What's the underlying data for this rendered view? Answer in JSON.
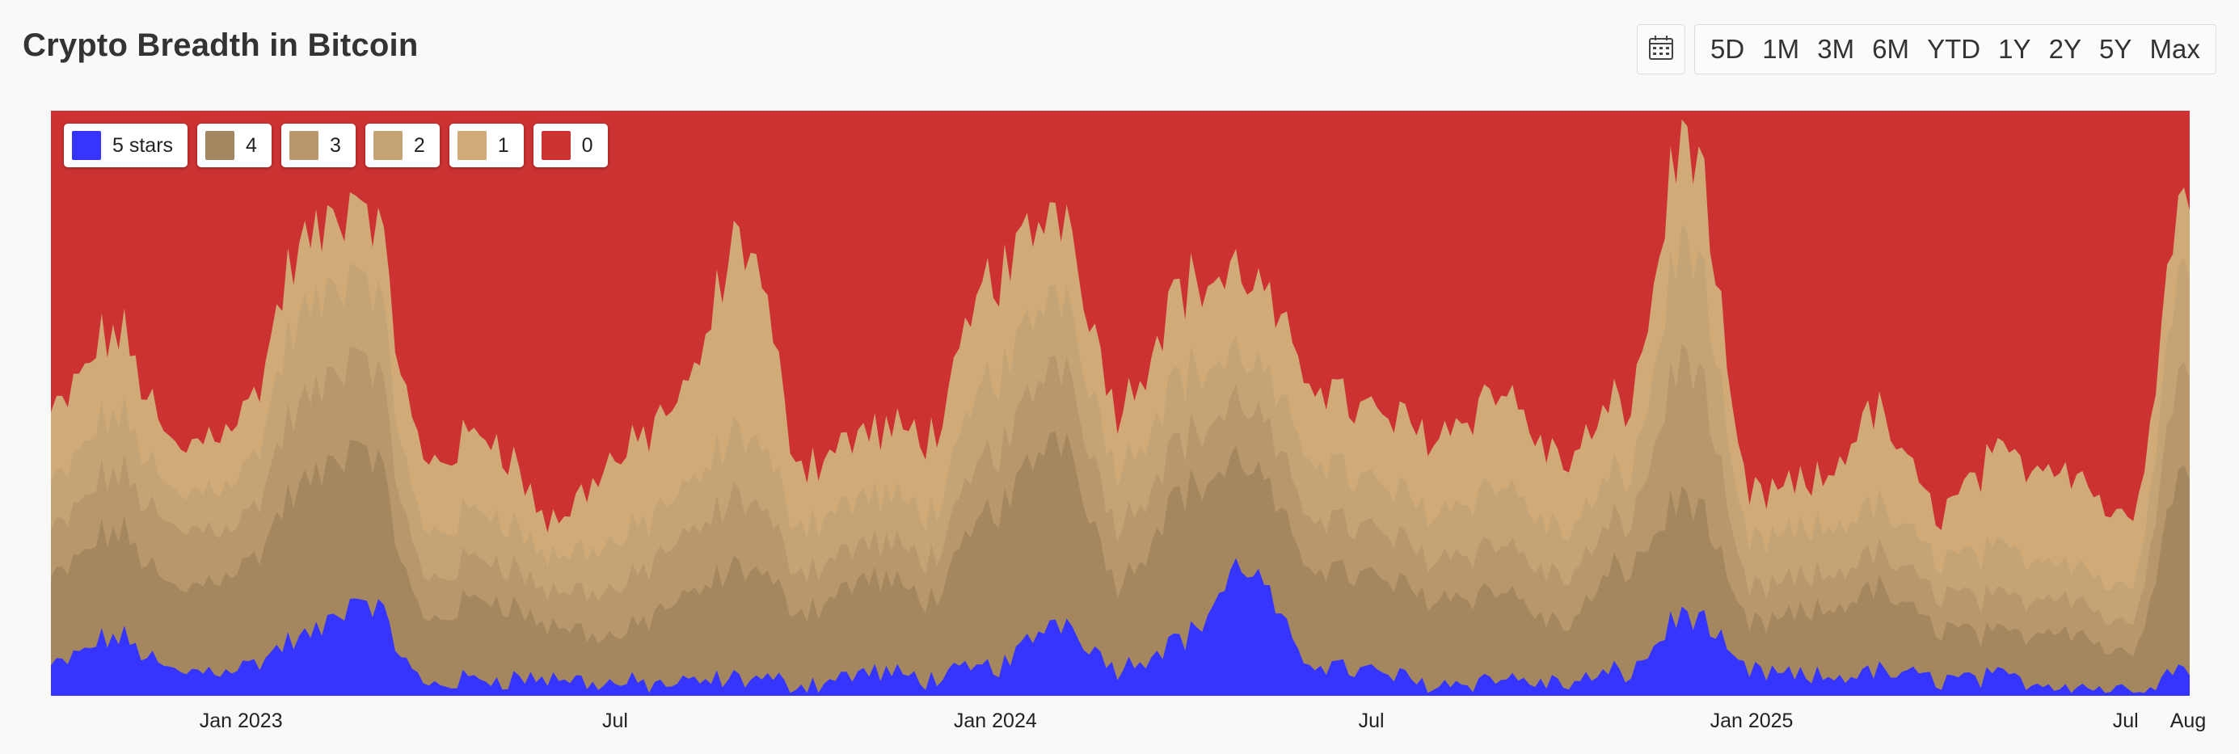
{
  "title": "Crypto Breadth in Bitcoin",
  "toolbar": {
    "calendar_icon": "calendar-icon",
    "ranges": [
      "5D",
      "1M",
      "3M",
      "6M",
      "YTD",
      "1Y",
      "2Y",
      "5Y",
      "Max"
    ]
  },
  "chart_data": {
    "type": "area",
    "stacked": true,
    "normalized": true,
    "x_range": [
      "2022-10-01",
      "2025-08-01"
    ],
    "y_range": [
      0,
      1
    ],
    "x_tick_labels": [
      {
        "label": "Jan 2023",
        "date": "2023-01-01"
      },
      {
        "label": "Jul",
        "date": "2023-07-01"
      },
      {
        "label": "Jan 2024",
        "date": "2024-01-01"
      },
      {
        "label": "Jul",
        "date": "2024-07-01"
      },
      {
        "label": "Jan 2025",
        "date": "2025-01-01"
      },
      {
        "label": "Jul",
        "date": "2025-07-01"
      },
      {
        "label": "Aug",
        "date": "2025-08-01"
      }
    ],
    "legend_position": "top-left",
    "series": [
      {
        "name": "5 stars",
        "color": "#3535ff"
      },
      {
        "name": "4",
        "color": "#a5875f"
      },
      {
        "name": "3",
        "color": "#b8976c"
      },
      {
        "name": "2",
        "color": "#c4a374"
      },
      {
        "name": "1",
        "color": "#d0ab78"
      },
      {
        "name": "0",
        "color": "#cc3232"
      }
    ],
    "cumulative_top": {
      "dates": [
        "2022-10-01",
        "2022-11-01",
        "2022-12-01",
        "2023-01-01",
        "2023-02-01",
        "2023-03-01",
        "2023-04-01",
        "2023-05-01",
        "2023-06-01",
        "2023-07-01",
        "2023-08-01",
        "2023-09-01",
        "2023-10-01",
        "2023-11-01",
        "2023-12-01",
        "2024-01-01",
        "2024-02-01",
        "2024-03-01",
        "2024-04-01",
        "2024-05-01",
        "2024-06-01",
        "2024-07-01",
        "2024-08-01",
        "2024-09-01",
        "2024-10-01",
        "2024-11-01",
        "2024-12-01",
        "2025-01-01",
        "2025-02-01",
        "2025-03-01",
        "2025-04-01",
        "2025-05-01",
        "2025-06-01",
        "2025-07-01",
        "2025-08-01"
      ],
      "5 stars": [
        0.05,
        0.1,
        0.04,
        0.05,
        0.1,
        0.17,
        0.02,
        0.03,
        0.03,
        0.02,
        0.02,
        0.03,
        0.02,
        0.04,
        0.03,
        0.05,
        0.13,
        0.05,
        0.1,
        0.22,
        0.06,
        0.04,
        0.02,
        0.03,
        0.02,
        0.04,
        0.14,
        0.04,
        0.03,
        0.04,
        0.03,
        0.03,
        0.02,
        0.01,
        0.05
      ],
      "4": [
        0.2,
        0.28,
        0.18,
        0.22,
        0.36,
        0.44,
        0.13,
        0.17,
        0.12,
        0.1,
        0.16,
        0.22,
        0.15,
        0.2,
        0.17,
        0.32,
        0.45,
        0.2,
        0.35,
        0.4,
        0.23,
        0.2,
        0.17,
        0.18,
        0.12,
        0.22,
        0.34,
        0.12,
        0.14,
        0.18,
        0.12,
        0.1,
        0.12,
        0.07,
        0.4
      ],
      "3": [
        0.28,
        0.38,
        0.28,
        0.3,
        0.5,
        0.6,
        0.2,
        0.24,
        0.18,
        0.18,
        0.26,
        0.34,
        0.22,
        0.26,
        0.24,
        0.42,
        0.58,
        0.3,
        0.44,
        0.5,
        0.32,
        0.28,
        0.24,
        0.26,
        0.2,
        0.3,
        0.58,
        0.18,
        0.2,
        0.24,
        0.18,
        0.16,
        0.18,
        0.12,
        0.58
      ],
      "2": [
        0.36,
        0.48,
        0.34,
        0.38,
        0.65,
        0.74,
        0.28,
        0.32,
        0.24,
        0.26,
        0.34,
        0.45,
        0.3,
        0.34,
        0.32,
        0.55,
        0.7,
        0.4,
        0.55,
        0.58,
        0.42,
        0.36,
        0.32,
        0.36,
        0.28,
        0.38,
        0.78,
        0.26,
        0.28,
        0.32,
        0.24,
        0.24,
        0.24,
        0.18,
        0.76
      ],
      "1": [
        0.48,
        0.62,
        0.42,
        0.48,
        0.77,
        0.86,
        0.4,
        0.45,
        0.3,
        0.4,
        0.5,
        0.78,
        0.4,
        0.45,
        0.45,
        0.72,
        0.84,
        0.5,
        0.7,
        0.72,
        0.55,
        0.48,
        0.45,
        0.52,
        0.4,
        0.5,
        0.96,
        0.34,
        0.36,
        0.48,
        0.32,
        0.4,
        0.4,
        0.3,
        0.88
      ]
    }
  }
}
